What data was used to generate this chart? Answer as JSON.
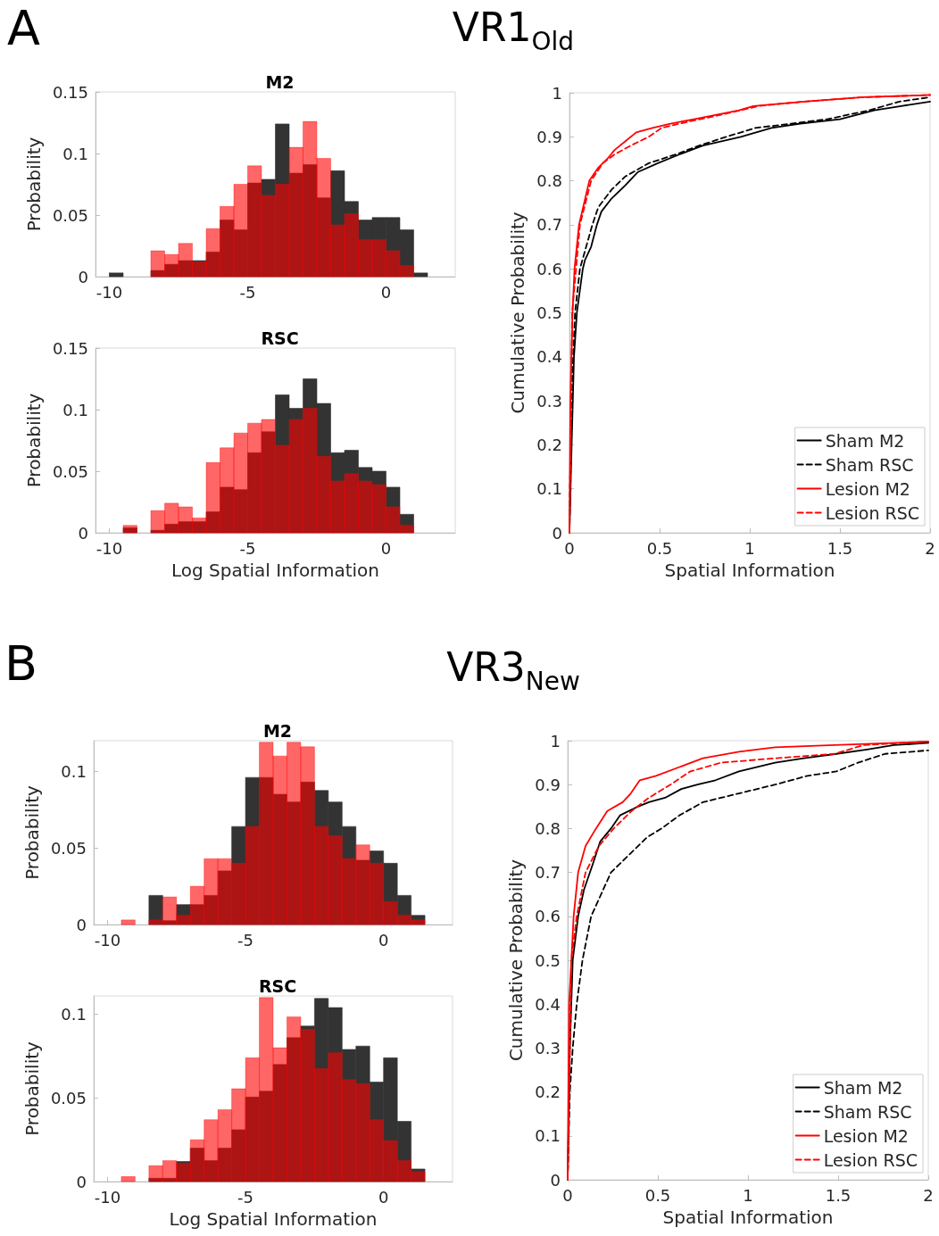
{
  "chart_data": [
    {
      "type": "histogram",
      "title": "M2",
      "ylabel": "Probability",
      "annotations": [
        "A",
        "VR1$_{Old}$"
      ],
      "xlim": [
        -10.5,
        2.5
      ],
      "xticks": [
        -10,
        -5,
        0
      ],
      "ylim": [
        0,
        0.15
      ],
      "yticks": [
        0,
        0.05,
        0.1,
        0.15
      ],
      "bins": [
        -10,
        -9.5,
        -9,
        -8.5,
        -8,
        -7.5,
        -7,
        -6.5,
        -6,
        -5.5,
        -5,
        -4.5,
        -4,
        -3.5,
        -3,
        -2.5,
        -2,
        -1.5,
        -1,
        -0.5,
        0,
        0.5,
        1,
        1.5,
        2
      ],
      "series": [
        {
          "color": "#333333",
          "values": [
            0.003,
            0,
            0,
            0.005,
            0.01,
            0.013,
            0.013,
            0.02,
            0.046,
            0.038,
            0.076,
            0.079,
            0.124,
            0.084,
            0.091,
            0.064,
            0.086,
            0.061,
            0.046,
            0.048,
            0.048,
            0.038,
            0.003,
            0
          ]
        },
        {
          "color": "#ff0000",
          "values": [
            0,
            0,
            0,
            0.021,
            0.018,
            0.027,
            0.012,
            0.039,
            0.057,
            0.075,
            0.09,
            0.066,
            0.075,
            0.105,
            0.126,
            0.096,
            0.042,
            0.051,
            0.03,
            0.03,
            0.021,
            0.009,
            0,
            0
          ]
        }
      ]
    },
    {
      "type": "histogram",
      "title": "RSC",
      "xlabel": "Log Spatial Information",
      "ylabel": "Probability",
      "xlim": [
        -10.5,
        2.5
      ],
      "xticks": [
        -10,
        -5,
        0
      ],
      "ylim": [
        0,
        0.15
      ],
      "yticks": [
        0,
        0.05,
        0.1,
        0.15
      ],
      "bins": [
        -10,
        -9.5,
        -9,
        -8.5,
        -8,
        -7.5,
        -7,
        -6.5,
        -6,
        -5.5,
        -5,
        -4.5,
        -4,
        -3.5,
        -3,
        -2.5,
        -2,
        -1.5,
        -1,
        -0.5,
        0,
        0.5,
        1,
        1.5,
        2
      ],
      "series": [
        {
          "color": "#333333",
          "values": [
            0,
            0.004,
            0,
            0.002,
            0.007,
            0.009,
            0.009,
            0.017,
            0.037,
            0.035,
            0.065,
            0.082,
            0.112,
            0.101,
            0.125,
            0.105,
            0.065,
            0.067,
            0.053,
            0.05,
            0.037,
            0.015,
            0,
            0
          ]
        },
        {
          "color": "#ff0000",
          "values": [
            0,
            0.006,
            0,
            0.018,
            0.024,
            0.021,
            0.012,
            0.057,
            0.069,
            0.081,
            0.089,
            0.092,
            0.071,
            0.092,
            0.101,
            0.062,
            0.042,
            0.048,
            0.042,
            0.039,
            0.021,
            0.006,
            0,
            0
          ]
        }
      ]
    },
    {
      "type": "line",
      "xlabel": "Spatial Information",
      "ylabel": "Cumulative Probability",
      "xlim": [
        0,
        2
      ],
      "xticks": [
        0,
        0.5,
        1,
        1.5,
        2
      ],
      "ylim": [
        0,
        1
      ],
      "yticks": [
        0,
        0.1,
        0.2,
        0.3,
        0.4,
        0.5,
        0.6,
        0.7,
        0.8,
        0.9,
        1
      ],
      "legend": "bottom right",
      "marker": "none",
      "series": [
        {
          "name": "Sham M2",
          "color": "#000000",
          "line_style": "solid",
          "x": [
            0,
            0.012,
            0.025,
            0.041,
            0.074,
            0.086,
            0.12,
            0.152,
            0.177,
            0.234,
            0.31,
            0.38,
            0.49,
            0.61,
            0.74,
            0.95,
            1.12,
            1.28,
            1.5,
            1.69,
            1.84,
            2.0
          ],
          "values": [
            0,
            0.2,
            0.4,
            0.5,
            0.6,
            0.62,
            0.65,
            0.7,
            0.73,
            0.76,
            0.79,
            0.82,
            0.84,
            0.86,
            0.88,
            0.9,
            0.92,
            0.93,
            0.94,
            0.96,
            0.97,
            0.98
          ]
        },
        {
          "name": "Sham RSC",
          "color": "#000000",
          "line_style": "dashed",
          "x": [
            0,
            0.01,
            0.031,
            0.058,
            0.127,
            0.16,
            0.234,
            0.31,
            0.44,
            0.59,
            0.72,
            0.87,
            1.03,
            1.43,
            1.66,
            1.83,
            2.0
          ],
          "values": [
            0,
            0.3,
            0.5,
            0.6,
            0.7,
            0.74,
            0.78,
            0.81,
            0.84,
            0.86,
            0.88,
            0.9,
            0.92,
            0.94,
            0.96,
            0.98,
            0.99
          ]
        },
        {
          "name": "Lesion M2",
          "color": "#ff0000",
          "line_style": "solid",
          "x": [
            0,
            0.005,
            0.017,
            0.028,
            0.053,
            0.11,
            0.16,
            0.21,
            0.25,
            0.31,
            0.37,
            0.46,
            0.56,
            0.69,
            0.94,
            1.02,
            1.3,
            1.63,
            2.0
          ],
          "values": [
            0,
            0.3,
            0.5,
            0.6,
            0.7,
            0.8,
            0.83,
            0.85,
            0.87,
            0.89,
            0.91,
            0.92,
            0.93,
            0.94,
            0.96,
            0.97,
            0.98,
            0.99,
            0.995
          ]
        },
        {
          "name": "Lesion RSC",
          "color": "#ff0000",
          "line_style": "dashed",
          "x": [
            0,
            0.015,
            0.058,
            0.12,
            0.185,
            0.25,
            0.34,
            0.44,
            0.51,
            0.61,
            0.84,
            1.05,
            1.3,
            1.63,
            2.0
          ],
          "values": [
            0,
            0.5,
            0.7,
            0.8,
            0.84,
            0.86,
            0.88,
            0.9,
            0.92,
            0.93,
            0.95,
            0.97,
            0.98,
            0.99,
            0.995
          ]
        }
      ]
    },
    {
      "type": "histogram",
      "title": "M2",
      "ylabel": "Probability",
      "annotations": [
        "B",
        "VR3$_{New}$"
      ],
      "xlim": [
        -10.5,
        2.5
      ],
      "xticks": [
        -10,
        -5,
        0
      ],
      "ylim": [
        0,
        0.12
      ],
      "yticks": [
        0,
        0.05,
        0.1
      ],
      "bins": [
        -10,
        -9.5,
        -9,
        -8.5,
        -8,
        -7.5,
        -7,
        -6.5,
        -6,
        -5.5,
        -5,
        -4.5,
        -4,
        -3.5,
        -3,
        -2.5,
        -2,
        -1.5,
        -1,
        -0.5,
        0,
        0.5,
        1,
        1.5,
        2
      ],
      "series": [
        {
          "color": "#333333",
          "values": [
            0,
            0,
            0,
            0.019,
            0.0025,
            0.013,
            0.013,
            0.019,
            0.035,
            0.064,
            0.096,
            0.096,
            0.085,
            0.08,
            0.093,
            0.0875,
            0.08,
            0.064,
            0.042,
            0.048,
            0.04,
            0.019,
            0.006,
            0
          ]
        },
        {
          "color": "#ff0000",
          "values": [
            0,
            0.003,
            0,
            0.003,
            0.018,
            0.006,
            0.025,
            0.043,
            0.043,
            0.04,
            0.064,
            0.119,
            0.11,
            0.119,
            0.116,
            0.064,
            0.058,
            0.043,
            0.052,
            0.04,
            0.015,
            0.006,
            0.003,
            0
          ]
        }
      ]
    },
    {
      "type": "histogram",
      "title": "RSC",
      "xlabel": "Log Spatial Information",
      "ylabel": "Probability",
      "xlim": [
        -10.5,
        2.5
      ],
      "xticks": [
        -10,
        -5,
        0
      ],
      "ylim": [
        0,
        0.111
      ],
      "yticks": [
        0,
        0.05,
        0.1
      ],
      "bins": [
        -10,
        -9.5,
        -9,
        -8.5,
        -8,
        -7.5,
        -7,
        -6.5,
        -6,
        -5.5,
        -5,
        -4.5,
        -4,
        -3.5,
        -3,
        -2.5,
        -2,
        -1.5,
        -1,
        -0.5,
        0,
        0.5,
        1,
        1.5,
        2
      ],
      "series": [
        {
          "color": "#333333",
          "values": [
            0,
            0,
            0,
            0.002,
            0.002,
            0.012,
            0.02,
            0.0125,
            0.02,
            0.031,
            0.0505,
            0.054,
            0.07,
            0.086,
            0.093,
            0.1095,
            0.104,
            0.079,
            0.081,
            0.0595,
            0.074,
            0.036,
            0.0075,
            0
          ]
        },
        {
          "color": "#ff0000",
          "values": [
            0,
            0.003,
            0,
            0.0095,
            0.0125,
            0.011,
            0.025,
            0.037,
            0.043,
            0.0555,
            0.074,
            0.11,
            0.08,
            0.0985,
            0.091,
            0.0675,
            0.077,
            0.061,
            0.0585,
            0.037,
            0.0245,
            0.0125,
            0.006,
            0
          ]
        }
      ]
    },
    {
      "type": "line",
      "xlabel": "Spatial Information",
      "ylabel": "Cumulative Probability",
      "xlim": [
        0,
        2
      ],
      "xticks": [
        0,
        0.5,
        1,
        1.5,
        2
      ],
      "ylim": [
        0,
        1
      ],
      "yticks": [
        0,
        0.1,
        0.2,
        0.3,
        0.4,
        0.5,
        0.6,
        0.7,
        0.8,
        0.9,
        1
      ],
      "legend": "bottom right",
      "marker": "none",
      "series": [
        {
          "name": "Sham M2",
          "color": "#000000",
          "line_style": "solid",
          "x": [
            0,
            0.012,
            0.028,
            0.058,
            0.09,
            0.14,
            0.18,
            0.24,
            0.29,
            0.39,
            0.45,
            0.54,
            0.63,
            0.72,
            0.82,
            0.95,
            1.15,
            1.31,
            1.49,
            1.66,
            1.81,
            2.0
          ],
          "values": [
            0,
            0.3,
            0.5,
            0.6,
            0.66,
            0.72,
            0.77,
            0.8,
            0.83,
            0.85,
            0.86,
            0.87,
            0.89,
            0.9,
            0.91,
            0.93,
            0.95,
            0.96,
            0.97,
            0.98,
            0.99,
            0.995
          ]
        },
        {
          "name": "Sham RSC",
          "color": "#000000",
          "line_style": "dashed",
          "x": [
            0,
            0.012,
            0.028,
            0.05,
            0.082,
            0.13,
            0.24,
            0.34,
            0.44,
            0.52,
            0.62,
            0.75,
            0.95,
            1.15,
            1.33,
            1.49,
            1.61,
            1.76,
            2.0
          ],
          "values": [
            0,
            0.2,
            0.3,
            0.4,
            0.5,
            0.6,
            0.7,
            0.74,
            0.78,
            0.8,
            0.83,
            0.86,
            0.88,
            0.9,
            0.92,
            0.93,
            0.95,
            0.97,
            0.978
          ]
        },
        {
          "name": "Lesion M2",
          "color": "#ff0000",
          "line_style": "solid",
          "x": [
            0,
            0.008,
            0.033,
            0.058,
            0.099,
            0.157,
            0.22,
            0.305,
            0.35,
            0.4,
            0.49,
            0.62,
            0.75,
            0.95,
            1.15,
            1.48,
            2.0
          ],
          "values": [
            0,
            0.4,
            0.6,
            0.7,
            0.76,
            0.8,
            0.84,
            0.86,
            0.88,
            0.91,
            0.92,
            0.94,
            0.96,
            0.975,
            0.985,
            0.99,
            0.998
          ]
        },
        {
          "name": "Lesion RSC",
          "color": "#ff0000",
          "line_style": "dashed",
          "x": [
            0,
            0.02,
            0.05,
            0.099,
            0.173,
            0.255,
            0.355,
            0.45,
            0.57,
            0.68,
            0.85,
            1.15,
            1.48,
            1.64,
            2.0
          ],
          "values": [
            0,
            0.5,
            0.6,
            0.7,
            0.76,
            0.8,
            0.84,
            0.87,
            0.9,
            0.93,
            0.95,
            0.96,
            0.97,
            0.99,
            0.998
          ]
        }
      ]
    }
  ]
}
